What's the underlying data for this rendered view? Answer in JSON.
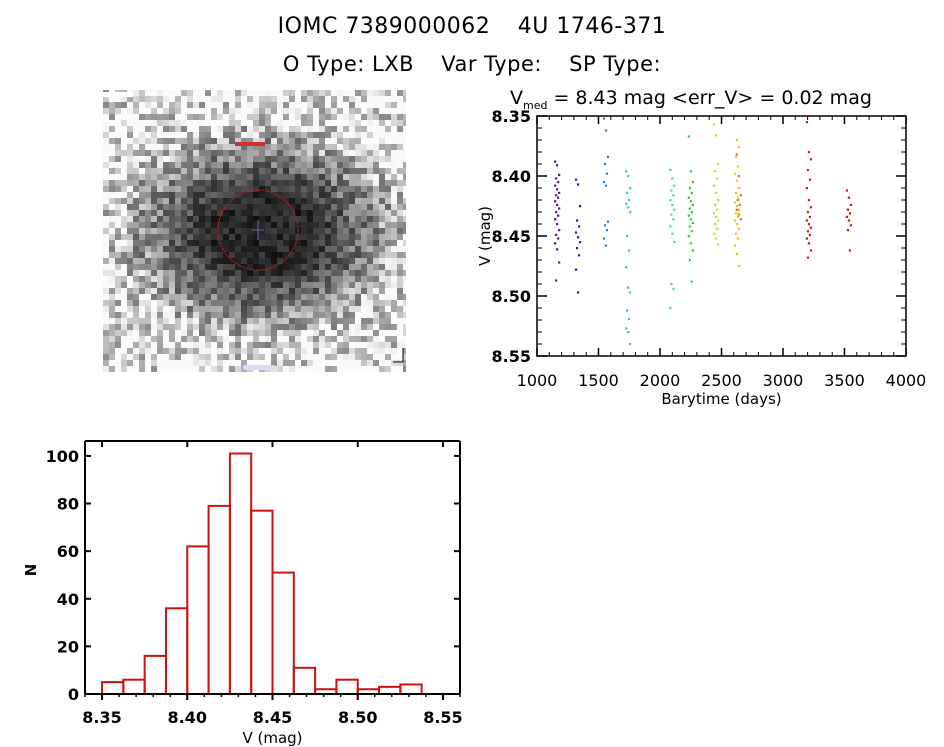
{
  "header": {
    "id_label": "IOMC 7389000062",
    "name_label": "4U 1746-371",
    "otype": "O Type: LXB",
    "vartype": "Var Type:",
    "sptype": "SP Type:"
  },
  "image_panel": {
    "description": "Grayscale sky image with red aperture circle and central crosshair"
  },
  "colors": {
    "histogram": "#cc1111",
    "axis": "#000000",
    "aperture": "#d02020"
  },
  "chart_data": [
    {
      "type": "scatter",
      "title_prefix": "V",
      "title_sub": "med",
      "title_rest": "= 8.43 mag <err_V> = 0.02 mag",
      "xlabel": "Barytime (days)",
      "ylabel": "V (mag)",
      "xlim": [
        1000,
        4000
      ],
      "ylim": [
        8.35,
        8.55
      ],
      "y_inverted": true,
      "xticks": [
        "1000",
        "1500",
        "2000",
        "2500",
        "3000",
        "3500",
        "4000"
      ],
      "yticks": [
        "8.35",
        "8.40",
        "8.45",
        "8.50",
        "8.55"
      ],
      "groups": [
        {
          "x": 1163,
          "color": "#4b1a80",
          "v": [
            8.388,
            8.391,
            8.399,
            8.402,
            8.405,
            8.408,
            8.411,
            8.414,
            8.416,
            8.418,
            8.421,
            8.424,
            8.427,
            8.43,
            8.433,
            8.436,
            8.44,
            8.445,
            8.449,
            8.452,
            8.456,
            8.461,
            8.472,
            8.487
          ]
        },
        {
          "x": 1333,
          "color": "#2a1aa0",
          "v": [
            8.403,
            8.407,
            8.425,
            8.437,
            8.442,
            8.447,
            8.451,
            8.455,
            8.46,
            8.466,
            8.478,
            8.497
          ]
        },
        {
          "x": 1560,
          "color": "#2f7fc0",
          "v": [
            8.352,
            8.362,
            8.384,
            8.39,
            8.398,
            8.405,
            8.408,
            8.438,
            8.441,
            8.445,
            8.452,
            8.458
          ]
        },
        {
          "x": 1740,
          "color": "#33c0d8",
          "v": [
            8.396,
            8.4,
            8.41,
            8.414,
            8.42,
            8.423,
            8.426,
            8.43,
            8.45,
            8.462,
            8.476,
            8.493,
            8.497,
            8.512,
            8.519,
            8.527,
            8.53,
            8.54
          ]
        },
        {
          "x": 2100,
          "color": "#30e0b0",
          "v": [
            8.395,
            8.402,
            8.408,
            8.412,
            8.416,
            8.42,
            8.424,
            8.428,
            8.432,
            8.436,
            8.442,
            8.448,
            8.455,
            8.49,
            8.494,
            8.51
          ]
        },
        {
          "x": 2250,
          "color": "#22d040",
          "v": [
            8.367,
            8.396,
            8.405,
            8.41,
            8.414,
            8.418,
            8.421,
            8.424,
            8.427,
            8.43,
            8.433,
            8.436,
            8.439,
            8.442,
            8.446,
            8.45,
            8.456,
            8.462,
            8.47,
            8.488
          ]
        },
        {
          "x": 2455,
          "color": "#b8e030",
          "v": [
            8.357,
            8.366,
            8.39,
            8.396,
            8.402,
            8.408,
            8.414,
            8.42,
            8.424,
            8.428,
            8.431,
            8.434,
            8.437,
            8.44,
            8.444,
            8.448,
            8.452,
            8.457
          ]
        },
        {
          "x": 2625,
          "color": "#f0c020",
          "v": [
            8.35,
            8.37,
            8.376,
            8.384,
            8.392,
            8.398,
            8.404,
            8.41,
            8.414,
            8.418,
            8.422,
            8.425,
            8.428,
            8.431,
            8.434,
            8.437,
            8.44,
            8.444,
            8.448,
            8.452,
            8.458,
            8.465,
            8.475
          ]
        },
        {
          "x": 2640,
          "color": "#e07010",
          "v": [
            8.382,
            8.4,
            8.416,
            8.42,
            8.424,
            8.428,
            8.432,
            8.436
          ]
        },
        {
          "x": 3210,
          "color": "#c81818",
          "v": [
            8.355,
            8.38,
            8.386,
            8.395,
            8.403,
            8.41,
            8.42,
            8.426,
            8.43,
            8.434,
            8.437,
            8.44,
            8.443,
            8.446,
            8.449,
            8.452,
            8.456,
            8.462,
            8.468
          ]
        },
        {
          "x": 3535,
          "color": "#c81818",
          "v": [
            8.412,
            8.418,
            8.424,
            8.428,
            8.431,
            8.434,
            8.437,
            8.441,
            8.445,
            8.462
          ]
        }
      ]
    },
    {
      "type": "bar",
      "subtype": "histogram",
      "xlabel": "V (mag)",
      "ylabel": "N",
      "xlim": [
        8.34,
        8.56
      ],
      "ylim": [
        0,
        105
      ],
      "xticks": [
        "8.35",
        "8.40",
        "8.45",
        "8.50",
        "8.55"
      ],
      "yticks": [
        "0",
        "20",
        "40",
        "60",
        "80",
        "100"
      ],
      "bin_start": 8.35,
      "bin_width": 0.0125,
      "values": [
        5,
        6,
        16,
        36,
        62,
        79,
        101,
        77,
        51,
        11,
        2,
        6,
        2,
        3,
        4
      ]
    }
  ]
}
